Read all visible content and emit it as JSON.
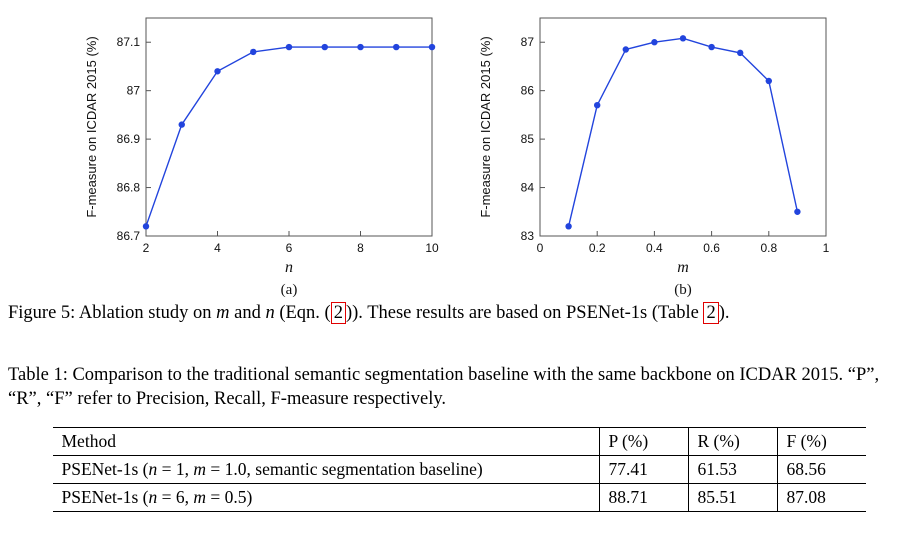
{
  "chart_data": [
    {
      "type": "line",
      "x": [
        2,
        3,
        4,
        5,
        6,
        7,
        8,
        9,
        10
      ],
      "values": [
        86.72,
        86.93,
        87.04,
        87.08,
        87.09,
        87.09,
        87.09,
        87.09,
        87.09
      ],
      "xlabel": "n",
      "ylabel": "F-measure on ICDAR 2015 (%)",
      "xlim": [
        2,
        10
      ],
      "ylim": [
        86.7,
        87.15
      ],
      "xticks": [
        [
          2,
          "2"
        ],
        [
          4,
          "4"
        ],
        [
          6,
          "6"
        ],
        [
          8,
          "8"
        ],
        [
          10,
          "10"
        ]
      ],
      "yticks": [
        [
          86.7,
          "86.7"
        ],
        [
          86.8,
          "86.8"
        ],
        [
          86.9,
          "86.9"
        ],
        [
          87,
          "87"
        ],
        [
          87.1,
          "87.1"
        ]
      ],
      "sublabel": "(a)",
      "line_color": "#2244dd",
      "grid": false,
      "legend": "none"
    },
    {
      "type": "line",
      "x": [
        0.1,
        0.2,
        0.3,
        0.4,
        0.5,
        0.6,
        0.7,
        0.8,
        0.9
      ],
      "values": [
        83.2,
        85.7,
        86.85,
        87.0,
        87.08,
        86.9,
        86.78,
        86.2,
        83.5
      ],
      "xlabel": "m",
      "ylabel": "F-measure on ICDAR 2015 (%)",
      "xlim": [
        0,
        1
      ],
      "ylim": [
        83,
        87.5
      ],
      "xticks": [
        [
          0,
          "0"
        ],
        [
          0.2,
          "0.2"
        ],
        [
          0.4,
          "0.4"
        ],
        [
          0.6,
          "0.6"
        ],
        [
          0.8,
          "0.8"
        ],
        [
          1,
          "1"
        ]
      ],
      "yticks": [
        [
          83,
          "83"
        ],
        [
          84,
          "84"
        ],
        [
          85,
          "85"
        ],
        [
          86,
          "86"
        ],
        [
          87,
          "87"
        ]
      ],
      "sublabel": "(b)",
      "line_color": "#2244dd",
      "grid": false,
      "legend": "none"
    }
  ],
  "figure_caption": {
    "parts": [
      {
        "t": "Figure 5: Ablation study on ",
        "s": "plain"
      },
      {
        "t": "m",
        "s": "math"
      },
      {
        "t": " and ",
        "s": "plain"
      },
      {
        "t": "n",
        "s": "math"
      },
      {
        "t": " (Eqn. (",
        "s": "plain"
      },
      {
        "t": "2",
        "s": "ref"
      },
      {
        "t": ")). These results are based on PSENet-1s (Table ",
        "s": "plain"
      },
      {
        "t": "2",
        "s": "ref"
      },
      {
        "t": ").",
        "s": "plain"
      }
    ]
  },
  "table_caption": {
    "text": "Table 1: Comparison to the traditional semantic segmentation baseline with the same backbone on ICDAR 2015. “P”, “R”, “F” refer to Precision, Recall, F-measure respectively."
  },
  "table": {
    "headers": [
      "Method",
      "P (%)",
      "R (%)",
      "F (%)"
    ],
    "rows": [
      {
        "method_parts": [
          {
            "t": "PSENet-1s (",
            "s": "plain"
          },
          {
            "t": "n",
            "s": "math"
          },
          {
            "t": " = 1, ",
            "s": "plain"
          },
          {
            "t": "m",
            "s": "math"
          },
          {
            "t": " = 1.0, semantic segmentation baseline)",
            "s": "plain"
          }
        ],
        "values": [
          "77.41",
          "61.53",
          "68.56"
        ],
        "bold_f": false
      },
      {
        "method_parts": [
          {
            "t": "PSENet-1s (",
            "s": "plain"
          },
          {
            "t": "n",
            "s": "math"
          },
          {
            "t": " = 6, ",
            "s": "plain"
          },
          {
            "t": "m",
            "s": "math"
          },
          {
            "t": " = 0.5)",
            "s": "plain"
          }
        ],
        "values": [
          "88.71",
          "85.51",
          "87.08"
        ],
        "bold_f": true
      }
    ]
  }
}
